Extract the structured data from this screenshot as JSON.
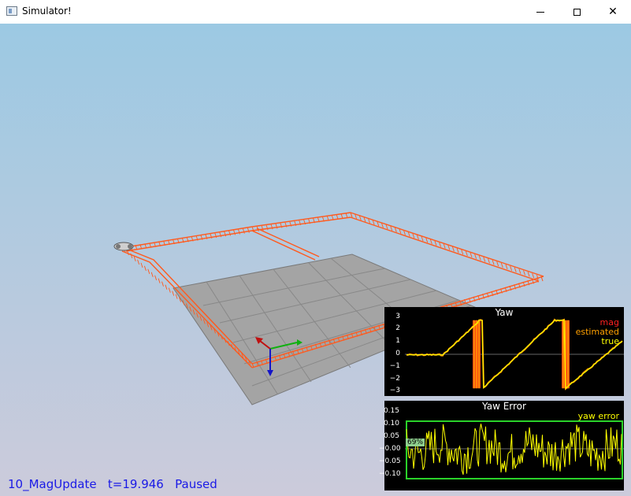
{
  "window": {
    "title": "Simulator!",
    "icons": {
      "app": "app-icon",
      "minimize": "minimize-icon",
      "maximize": "maximize-icon",
      "close": "close-icon"
    }
  },
  "status": {
    "scenario": "10_MagUpdate",
    "time": "t=19.946",
    "state": "Paused"
  },
  "yaw_chart": {
    "title": "Yaw",
    "yticks": [
      "3",
      "2",
      "1",
      "0",
      "−1",
      "−2",
      "−3"
    ],
    "legend": [
      {
        "label": "mag",
        "color": "#ff2020"
      },
      {
        "label": "estimated",
        "color": "#ffa000"
      },
      {
        "label": "true",
        "color": "#ffff00"
      }
    ]
  },
  "error_chart": {
    "title": "Yaw Error",
    "yticks": [
      "0.15",
      "0.10",
      "0.05",
      "−0.00",
      "−0.05",
      "−0.10"
    ],
    "legend": [
      {
        "label": "yaw error",
        "color": "#ffff00"
      }
    ],
    "percent_badge": "69%"
  },
  "colors": {
    "sky_top": "#9cc9e3",
    "sky_bottom": "#c8c8d8",
    "trajectory": "#ff5a1e",
    "ground": "#a6a6a6",
    "status_text": "#1a1ae6",
    "threshold_box": "#2ad22a"
  },
  "chart_data": [
    {
      "type": "line",
      "title": "Yaw",
      "ylim": [
        -3.3,
        3.3
      ],
      "series": [
        {
          "name": "true",
          "color": "#ffff00"
        },
        {
          "name": "estimated",
          "color": "#ffa000"
        },
        {
          "name": "mag",
          "color": "#ff2020"
        }
      ]
    },
    {
      "type": "line",
      "title": "Yaw Error",
      "ylim": [
        -0.15,
        0.15
      ],
      "thresholds": [
        -0.1,
        0.1
      ],
      "series": [
        {
          "name": "yaw error",
          "color": "#ffff00"
        }
      ]
    }
  ]
}
